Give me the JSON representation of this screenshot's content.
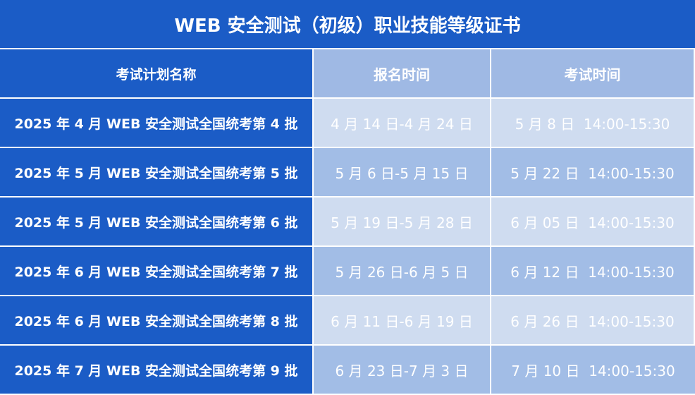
{
  "title": "WEB 安全测试（初级）职业技能等级证书",
  "headers": [
    "考试计划名称",
    "报名时间",
    "考试时间"
  ],
  "rows": [
    {
      "name": "2025 年 4 月 WEB 安全测试全国统考第 4 批",
      "registration": "4 月 14 日-4 月 24 日",
      "exam": "5 月 8 日  14:00-15:30"
    },
    {
      "name": "2025 年 5 月 WEB 安全测试全国统考第 5 批",
      "registration": "5 月 6 日-5 月 15 日",
      "exam": "5 月 22 日  14:00-15:30"
    },
    {
      "name": "2025 年 5 月 WEB 安全测试全国统考第 6 批",
      "registration": "5 月 19 日-5 月 28 日",
      "exam": "6 月 05 日  14:00-15:30"
    },
    {
      "name": "2025 年 6 月 WEB 安全测试全国统考第 7 批",
      "registration": "5 月 26 日-6 月 5 日",
      "exam": "6 月 12 日  14:00-15:30"
    },
    {
      "name": "2025 年 6 月 WEB 安全测试全国统考第 8 批",
      "registration": "6 月 11 日-6 月 19 日",
      "exam": "6 月 26 日  14:00-15:30"
    },
    {
      "name": "2025 年 7 月 WEB 安全测试全国统考第 9 批",
      "registration": "6 月 23 日-7 月 3 日",
      "exam": "7 月 10 日  14:00-15:30"
    }
  ],
  "colors": {
    "primary": "#1b5cc6",
    "header_light": "#9fb9e4",
    "row_light": "#cfdcf0",
    "row_mid": "#a2bde6"
  }
}
